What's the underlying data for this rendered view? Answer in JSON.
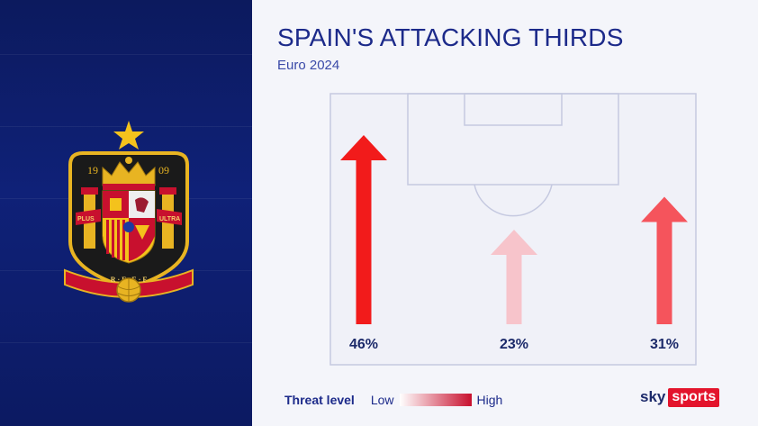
{
  "title": "SPAIN'S ATTACKING THIRDS",
  "subtitle": "Euro 2024",
  "crest": {
    "year_left": "19",
    "year_right": "09",
    "motto_left": "PLUS",
    "motto_right": "ULTRA",
    "initials": "R · F · E · F"
  },
  "chart_data": {
    "type": "bar",
    "categories": [
      "Left",
      "Centre",
      "Right"
    ],
    "values": [
      46,
      23,
      31
    ],
    "labels": [
      "46%",
      "23%",
      "31%"
    ],
    "colors": [
      "#f21b1b",
      "#f7c4cb",
      "#f5545c"
    ],
    "unit": "%",
    "legend_placement": "bottom-left"
  },
  "legend": {
    "title": "Threat level",
    "low": "Low",
    "high": "High",
    "gradient": [
      "#ffffff",
      "#c8102e"
    ]
  },
  "logo": {
    "sky": "sky",
    "sports": "sports"
  }
}
